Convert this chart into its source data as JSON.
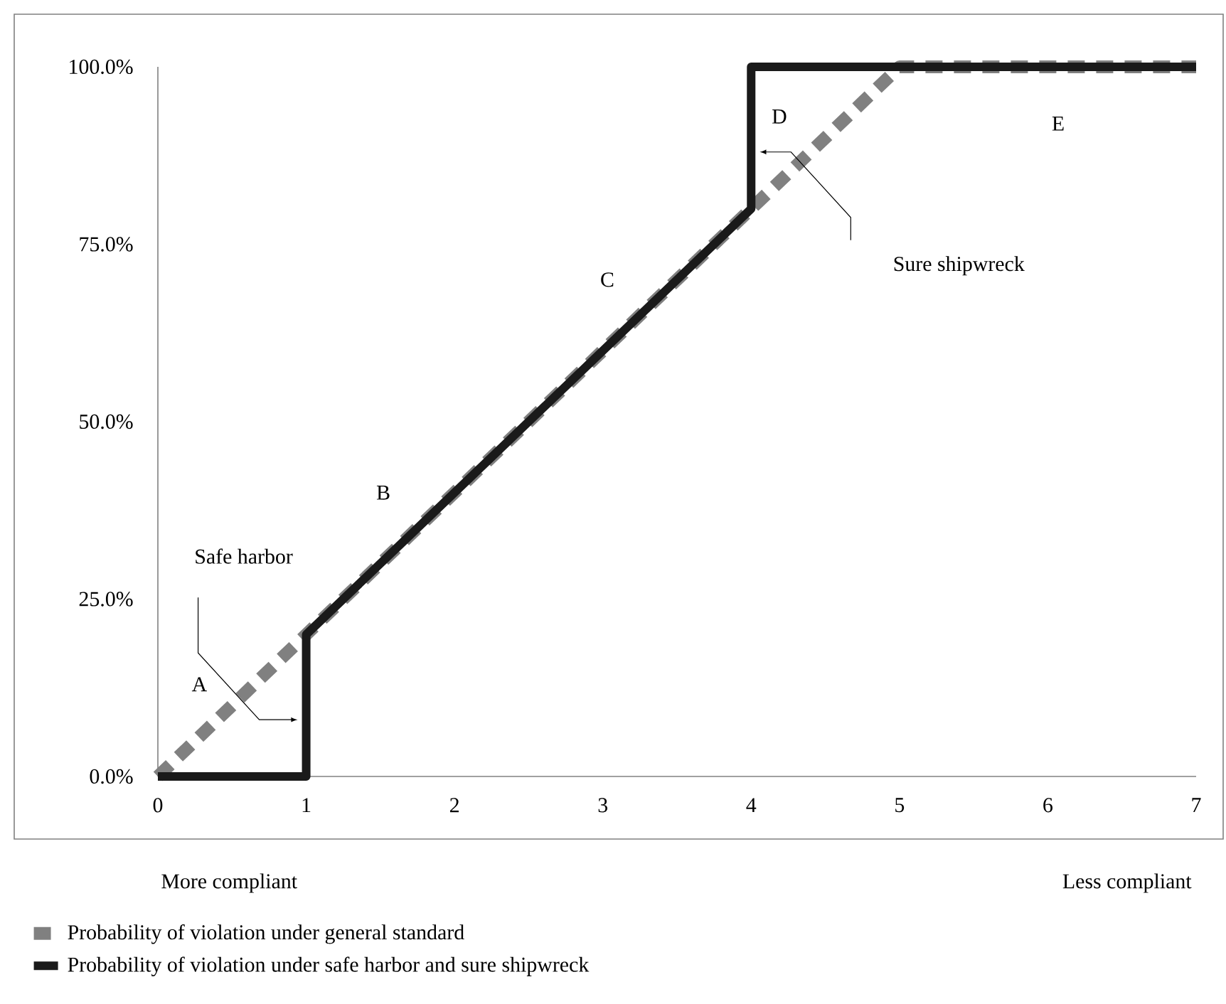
{
  "chart_data": {
    "type": "line",
    "series": [
      {
        "name": "Probability of violation under general standard",
        "color": "#808080",
        "line_style": "dashed",
        "x": [
          0,
          5,
          7
        ],
        "values": [
          0,
          100,
          100
        ]
      },
      {
        "name": "Probability of violation under safe harbor and sure shipwreck",
        "color": "#1a1a1a",
        "line_style": "solid",
        "x": [
          0,
          1,
          1,
          4,
          4,
          7
        ],
        "values": [
          0,
          0,
          20,
          80,
          100,
          100
        ]
      }
    ],
    "xlim": [
      0,
      7
    ],
    "ylim": [
      0,
      100
    ],
    "xticks": [
      0,
      1,
      2,
      3,
      4,
      5,
      6,
      7
    ],
    "yticks": [
      {
        "value": 0,
        "label": "0.0%"
      },
      {
        "value": 25,
        "label": "25.0%"
      },
      {
        "value": 50,
        "label": "50.0%"
      },
      {
        "value": 75,
        "label": "75.0%"
      },
      {
        "value": 100,
        "label": "100.0%"
      }
    ],
    "legend": "bottom left",
    "annotations": [
      "A",
      "B",
      "C",
      "D",
      "E",
      "Safe harbor",
      "Sure shipwreck",
      "More compliant",
      "Less compliant"
    ]
  }
}
